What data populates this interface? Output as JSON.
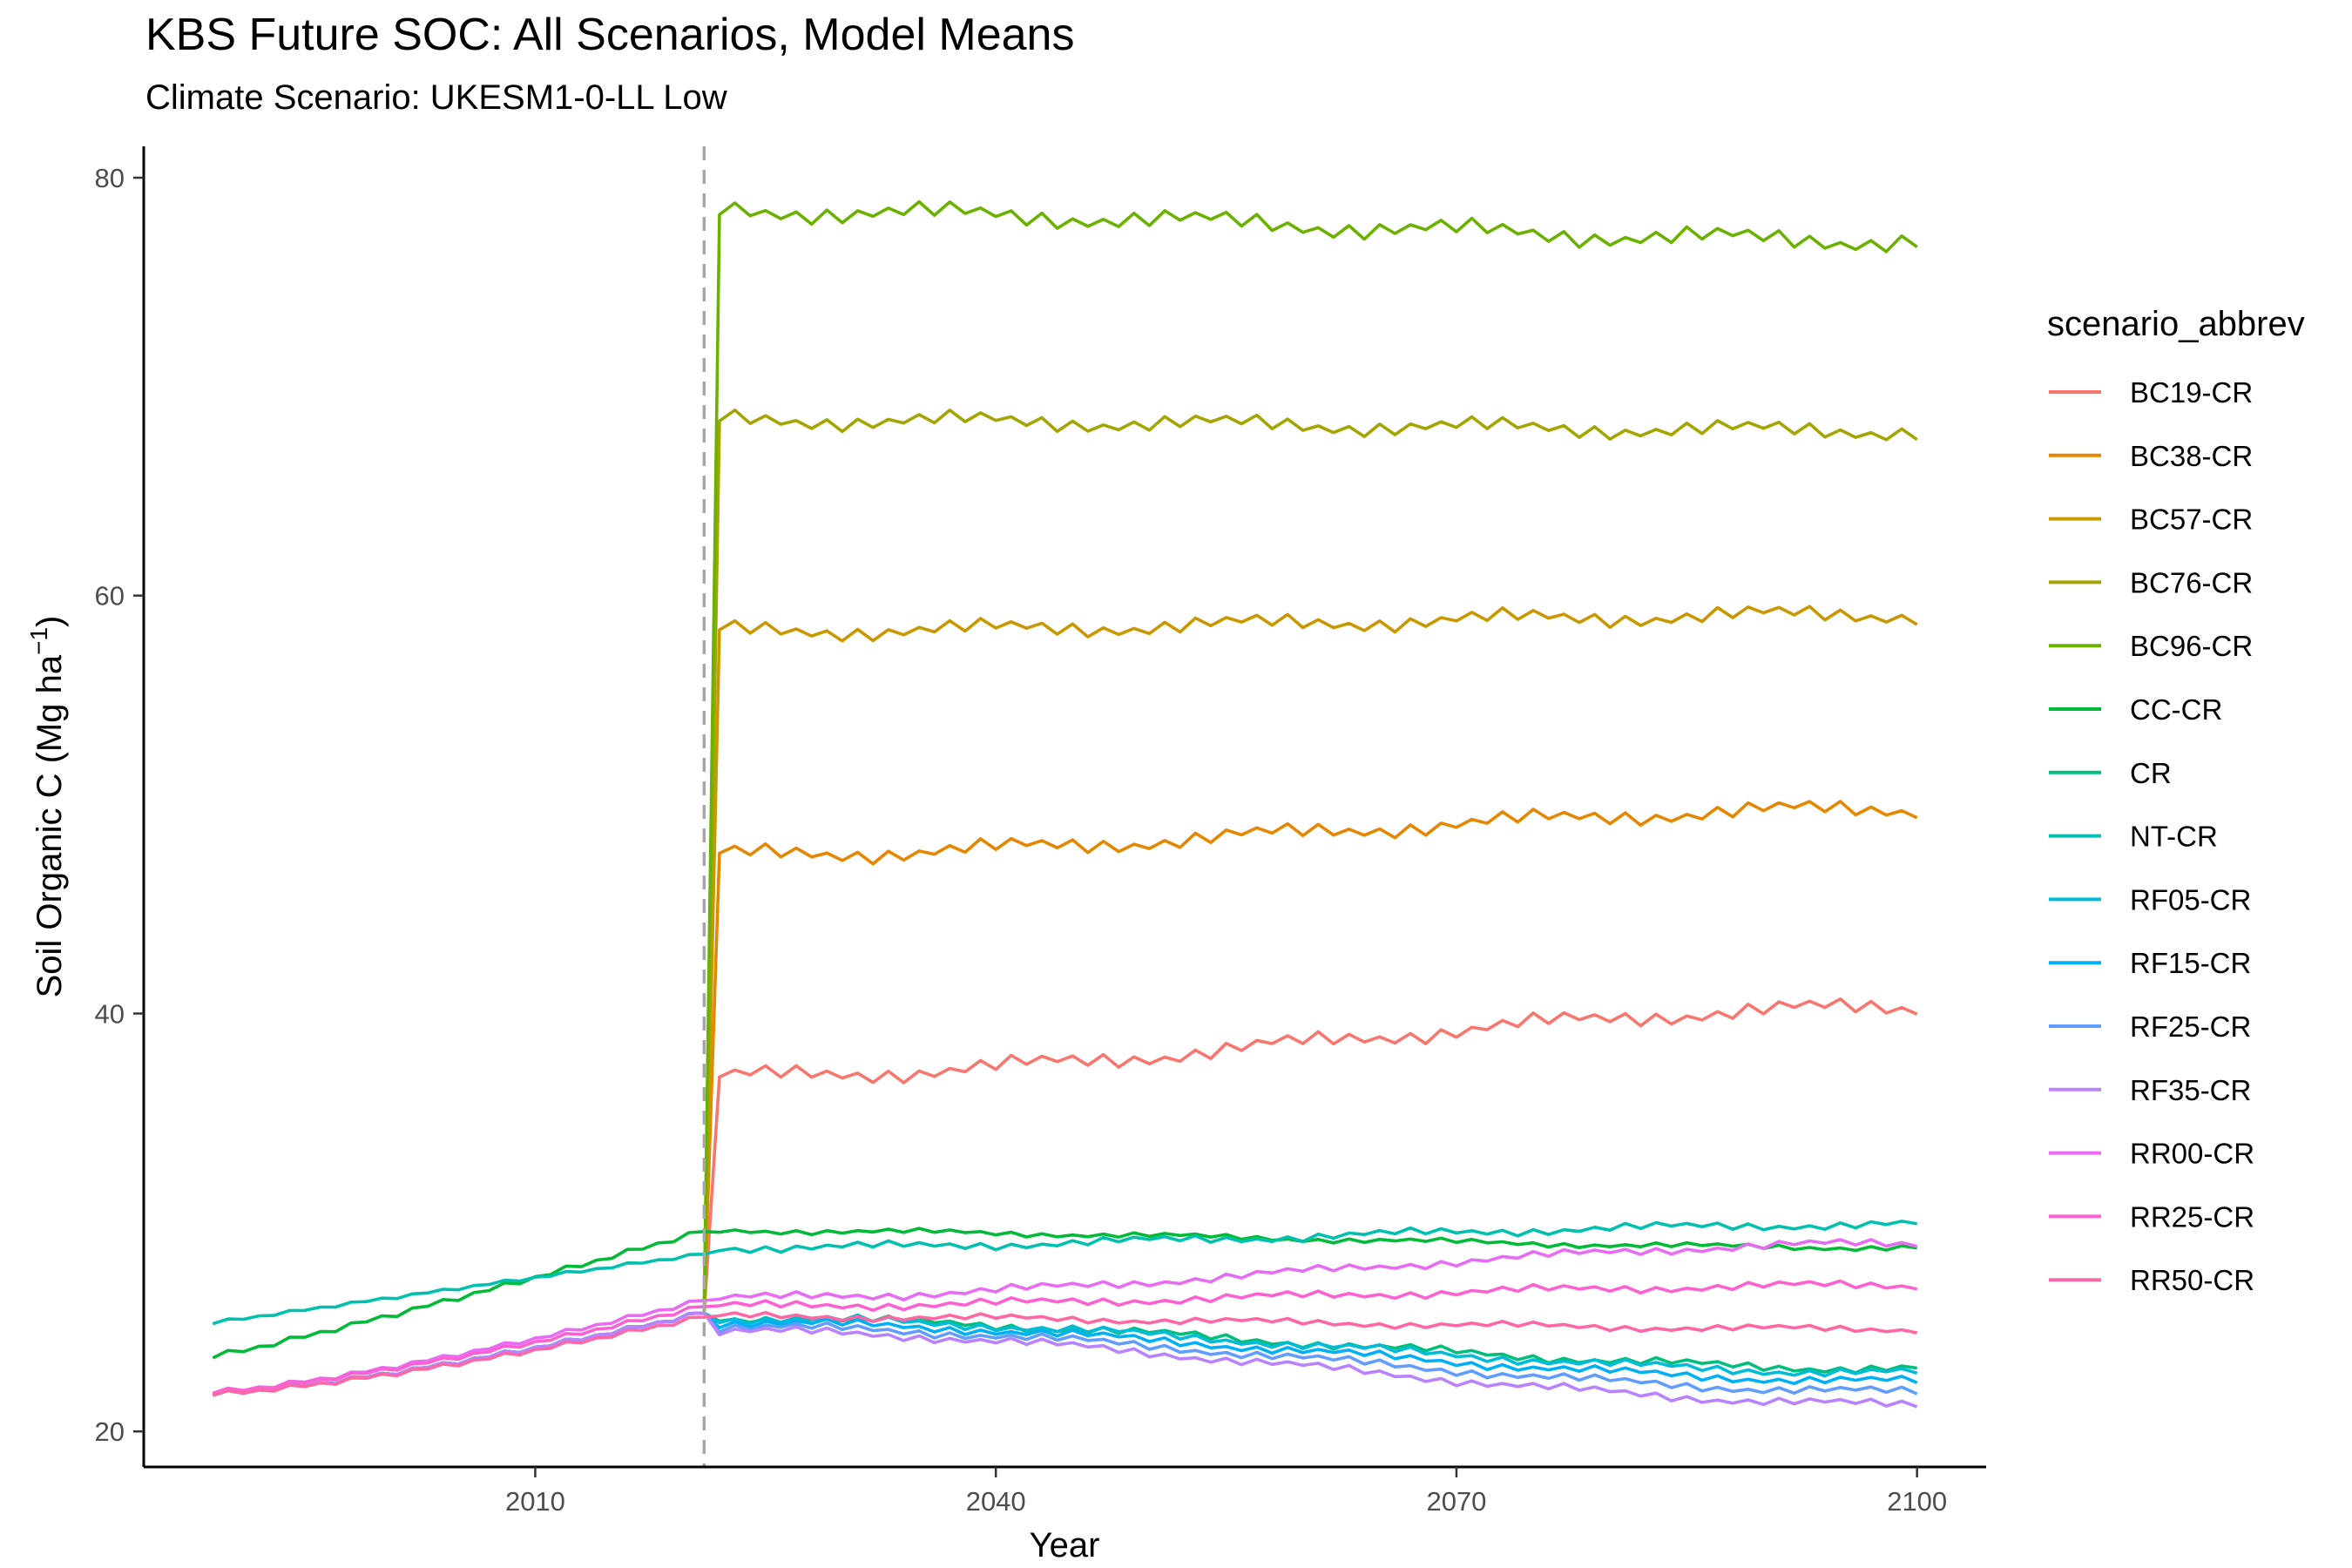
{
  "chart_data": {
    "type": "line",
    "title": "KBS  Future SOC: All Scenarios, Model Means",
    "subtitle": "Climate Scenario: UKESM1-0-LL Low",
    "xlabel": "Year",
    "ylabel": "Soil Organic C (Mg ha",
    "ylabel_sup": "−1",
    "ylabel_close": ")",
    "xlim": [
      1984.5,
      2104.5
    ],
    "ylim": [
      18.3,
      81.5
    ],
    "x_ticks": [
      2010,
      2040,
      2070,
      2100
    ],
    "y_ticks": [
      20,
      40,
      60,
      80
    ],
    "x_tick_labels": [
      "2010",
      "2040",
      "2070",
      "2100"
    ],
    "y_tick_labels": [
      "20",
      "40",
      "60",
      "80"
    ],
    "grid": false,
    "vline": {
      "x": 2021,
      "style": "dashed",
      "color": "#a6a6a6"
    },
    "legend": {
      "title": "scenario_abbrev",
      "position": "right"
    },
    "series": [
      {
        "name": "BC19-CR",
        "color": "#F8766D",
        "pre": "base",
        "post": {
          "start": 37.0,
          "end": 40.3,
          "zig": 0.3
        }
      },
      {
        "name": "BC38-CR",
        "color": "#E58700",
        "pre": "base",
        "post": {
          "start": 47.6,
          "end": 49.8,
          "zig": 0.3
        }
      },
      {
        "name": "BC57-CR",
        "color": "#C99800",
        "pre": "base",
        "post": {
          "start": 58.3,
          "end": 59.1,
          "zig": 0.3
        }
      },
      {
        "name": "BC76-CR",
        "color": "#A3A500",
        "pre": "base",
        "post": {
          "start": 68.4,
          "end": 67.9,
          "zig": 0.3
        }
      },
      {
        "name": "BC96-CR",
        "color": "#6BB100",
        "pre": "base",
        "post": {
          "start": 78.4,
          "end": 77.0,
          "zig": 0.35
        }
      },
      {
        "name": "CC-CR",
        "color": "#00BA38",
        "pre": "cc",
        "post": {
          "start": 29.6,
          "end": 28.8,
          "zig": 0.1
        }
      },
      {
        "name": "CR",
        "color": "#00BF7D",
        "pre": "base",
        "post": {
          "start": 25.4,
          "end": 23.0,
          "zig": 0.15
        }
      },
      {
        "name": "NT-CR",
        "color": "#00C0AF",
        "pre": "nt",
        "post": {
          "start": 28.8,
          "end": 29.9,
          "zig": 0.15
        }
      },
      {
        "name": "RF05-CR",
        "color": "#00BCD8",
        "pre": "base",
        "post": {
          "start": 25.4,
          "end": 22.8,
          "zig": 0.15
        }
      },
      {
        "name": "RF15-CR",
        "color": "#00B0F6",
        "pre": "base",
        "post": {
          "start": 25.2,
          "end": 22.4,
          "zig": 0.15
        }
      },
      {
        "name": "RF25-CR",
        "color": "#619CFF",
        "pre": "base",
        "post": {
          "start": 25.0,
          "end": 21.9,
          "zig": 0.15
        }
      },
      {
        "name": "RF35-CR",
        "color": "#B983FF",
        "pre": "base",
        "post": {
          "start": 24.8,
          "end": 21.3,
          "zig": 0.15
        }
      },
      {
        "name": "RR00-CR",
        "color": "#E76BF3",
        "pre": "rr00",
        "post": {
          "start": 26.4,
          "end": 29.0,
          "zig": 0.15
        }
      },
      {
        "name": "RR25-CR",
        "color": "#FD61D1",
        "pre": "rr25",
        "post": {
          "start": 26.0,
          "end": 27.0,
          "zig": 0.15
        }
      },
      {
        "name": "RR50-CR",
        "color": "#FF67A4",
        "pre": "rr50",
        "post": {
          "start": 25.5,
          "end": 24.9,
          "zig": 0.12
        }
      }
    ]
  }
}
